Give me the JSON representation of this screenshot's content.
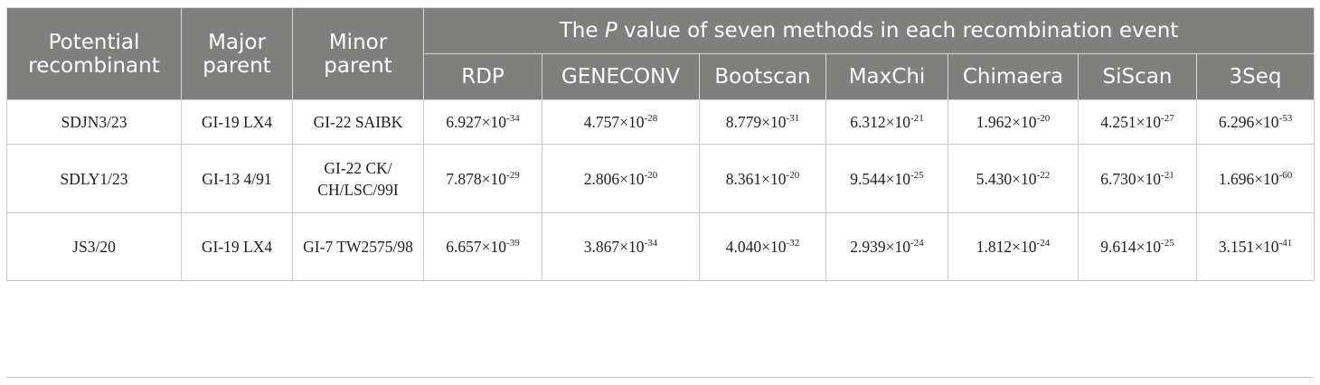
{
  "header": {
    "recombinant": "Potential recombinant",
    "major": "Major parent",
    "minor": "Minor parent",
    "group_pre": "The ",
    "group_p": "P",
    "group_post": " value of seven methods in each recombination event",
    "methods": [
      "RDP",
      "GENECONV",
      "Bootscan",
      "MaxChi",
      "Chimaera",
      "SiScan",
      "3Seq"
    ]
  },
  "rows": [
    {
      "recombinant": "SDJN3/23",
      "major": "GI-19 LX4",
      "minor": "GI-22 SAIBK",
      "values": [
        {
          "m": "6.927×10",
          "e": "-34"
        },
        {
          "m": "4.757×10",
          "e": "-28"
        },
        {
          "m": "8.779×10",
          "e": "-31"
        },
        {
          "m": "6.312×10",
          "e": "-21"
        },
        {
          "m": "1.962×10",
          "e": "-20"
        },
        {
          "m": "4.251×10",
          "e": "-27"
        },
        {
          "m": "6.296×10",
          "e": "-53"
        }
      ]
    },
    {
      "recombinant": "SDLY1/23",
      "major": "GI-13 4/91",
      "minor": "GI-22 CK/ CH/LSC/99I",
      "values": [
        {
          "m": "7.878×10",
          "e": "-29"
        },
        {
          "m": "2.806×10",
          "e": "-20"
        },
        {
          "m": "8.361×10",
          "e": "-20"
        },
        {
          "m": "9.544×10",
          "e": "-25"
        },
        {
          "m": "5.430×10",
          "e": "-22"
        },
        {
          "m": "6.730×10",
          "e": "-21"
        },
        {
          "m": "1.696×10",
          "e": "-60"
        }
      ]
    },
    {
      "recombinant": "JS3/20",
      "major": "GI-19 LX4",
      "minor": "GI-7 TW2575/98",
      "values": [
        {
          "m": "6.657×10",
          "e": "-39"
        },
        {
          "m": "3.867×10",
          "e": "-34"
        },
        {
          "m": "4.040×10",
          "e": "-32"
        },
        {
          "m": "2.939×10",
          "e": "-24"
        },
        {
          "m": "1.812×10",
          "e": "-24"
        },
        {
          "m": "9.614×10",
          "e": "-25"
        },
        {
          "m": "3.151×10",
          "e": "-41"
        }
      ]
    }
  ]
}
